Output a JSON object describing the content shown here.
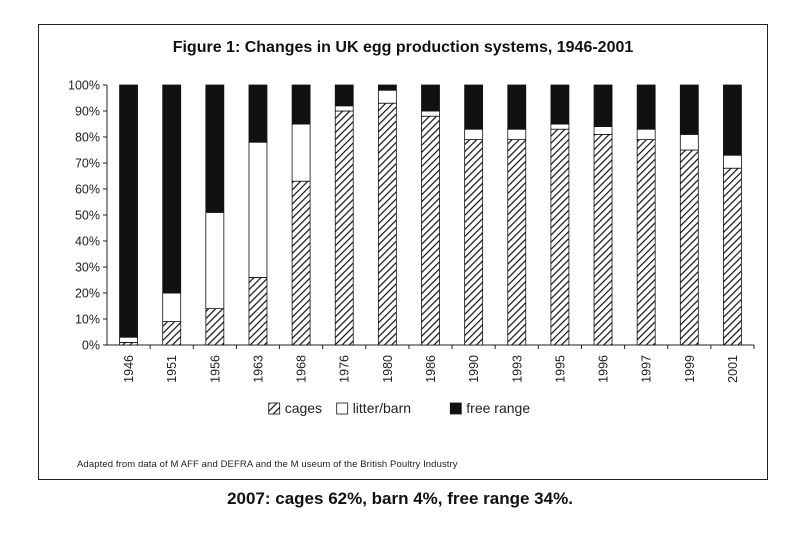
{
  "chart_data": {
    "type": "bar",
    "stacked": true,
    "title": "Figure 1: Changes in UK egg production systems, 1946-2001",
    "xlabel": "",
    "ylabel": "",
    "ylim": [
      0,
      100
    ],
    "y_ticks": [
      "0%",
      "10%",
      "20%",
      "30%",
      "40%",
      "50%",
      "60%",
      "70%",
      "80%",
      "90%",
      "100%"
    ],
    "categories": [
      "1946",
      "1951",
      "1956",
      "1963",
      "1968",
      "1976",
      "1980",
      "1986",
      "1990",
      "1993",
      "1995",
      "1996",
      "1997",
      "1999",
      "2001"
    ],
    "series": [
      {
        "name": "cages",
        "values": [
          1,
          9,
          14,
          26,
          63,
          90,
          93,
          88,
          79,
          79,
          83,
          81,
          79,
          75,
          68
        ],
        "fill": "hatch"
      },
      {
        "name": "litter/barn",
        "values": [
          2,
          11,
          37,
          52,
          22,
          2,
          5,
          2,
          4,
          4,
          2,
          3,
          4,
          6,
          5
        ],
        "fill": "#ffffff"
      },
      {
        "name": "free range",
        "values": [
          97,
          80,
          49,
          22,
          15,
          8,
          2,
          10,
          17,
          17,
          15,
          16,
          17,
          19,
          27
        ],
        "fill": "#111111"
      }
    ],
    "grid": false,
    "legend_position": "bottom"
  },
  "source_note": "Adapted from data of M AFF and DEFRA and the M useum of the British Poultry Industry",
  "footnote": "2007: cages 62%, barn 4%, free range 34%."
}
